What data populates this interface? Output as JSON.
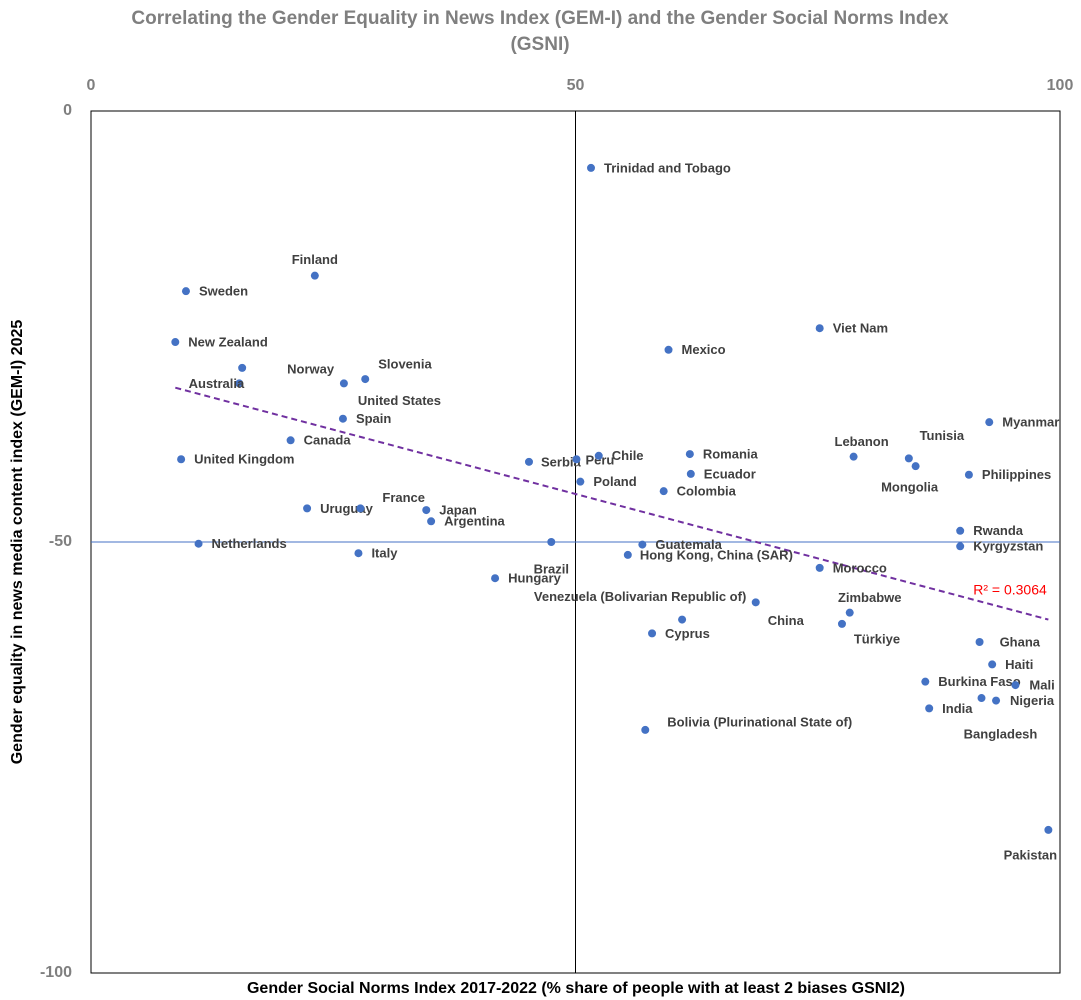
{
  "chart_data": {
    "type": "scatter",
    "title": "Correlating the Gender Equality in News Index (GEM-I) and the Gender Social Norms Index (GSNI)",
    "x_label": "Gender Social Norms Index 2017-2022 (% share of people with at least 2 biases GSNI2)",
    "y_label": "Gender equality in news media content index (GEM-I) 2025",
    "xlim": [
      0,
      100
    ],
    "xticks": [
      0,
      50,
      100
    ],
    "ylim": [
      -100,
      0
    ],
    "yticks": [
      0,
      -50,
      -100
    ],
    "crosshair": {
      "x": 50,
      "y": -50
    },
    "color": "#4472c4",
    "point_labels": [
      "Trinidad and Tobago",
      "Finland",
      "Sweden",
      "New Zealand",
      "Norway",
      "Australia",
      "Slovenia",
      "United States",
      "Spain",
      "Canada",
      "United Kingdom",
      "Uruguay",
      "France",
      "Japan",
      "Argentina",
      "Netherlands",
      "Italy",
      "Serbia",
      "Peru",
      "Chile",
      "Poland",
      "Brazil",
      "Hungary",
      "Mexico",
      "Romania",
      "Ecuador",
      "Colombia",
      "Guatemala",
      "Hong Kong, China (SAR)",
      "Venezuela (Bolivarian Republic of)",
      "China",
      "Cyprus",
      "Bolivia (Plurinational State of)",
      "Viet Nam",
      "Lebanon",
      "Tunisia",
      "Mongolia",
      "Myanmar",
      "Philippines",
      "Rwanda",
      "Kyrgyzstan",
      "Morocco",
      "Zimbabwe",
      "Türkiye",
      "Ghana",
      "Haiti",
      "Burkina Faso",
      "Mali",
      "Bangladesh",
      "Nigeria",
      "India",
      "Pakistan"
    ],
    "x": [
      51.6,
      23.1,
      9.8,
      8.7,
      15.6,
      15.3,
      28.3,
      26.1,
      26.0,
      20.6,
      9.3,
      22.3,
      27.8,
      34.6,
      35.1,
      11.1,
      27.6,
      45.2,
      50.1,
      52.4,
      50.5,
      47.5,
      41.7,
      59.6,
      61.8,
      61.9,
      59.1,
      56.9,
      55.4,
      61.0,
      68.6,
      57.9,
      57.2,
      75.2,
      78.7,
      84.4,
      85.1,
      92.7,
      90.6,
      89.7,
      89.7,
      75.2,
      78.3,
      77.5,
      91.7,
      93.0,
      86.1,
      95.4,
      91.9,
      93.4,
      86.5,
      98.8
    ],
    "values": [
      -6.6,
      -19.1,
      -20.9,
      -26.8,
      -29.8,
      -31.6,
      -31.1,
      -31.6,
      -35.7,
      -38.2,
      -40.4,
      -46.1,
      -46.1,
      -46.3,
      -47.6,
      -50.2,
      -51.3,
      -40.7,
      -40.4,
      -40.0,
      -43.0,
      -50.0,
      -54.2,
      -27.7,
      -39.8,
      -42.1,
      -44.1,
      -50.3,
      -51.5,
      -59.0,
      -57.0,
      -60.6,
      -71.8,
      -25.2,
      -40.1,
      -40.3,
      -41.2,
      -36.1,
      -42.2,
      -48.7,
      -50.5,
      -53.0,
      -58.2,
      -59.5,
      -61.6,
      -64.2,
      -66.2,
      -66.6,
      -68.1,
      -68.4,
      -69.3,
      -83.4
    ],
    "trendline": {
      "x": [
        8.7,
        98.8
      ],
      "y": [
        -32.1,
        -59.0
      ],
      "label": "R² = 0.3064",
      "color": "#7030a0",
      "label_color": "#ff0000"
    }
  }
}
